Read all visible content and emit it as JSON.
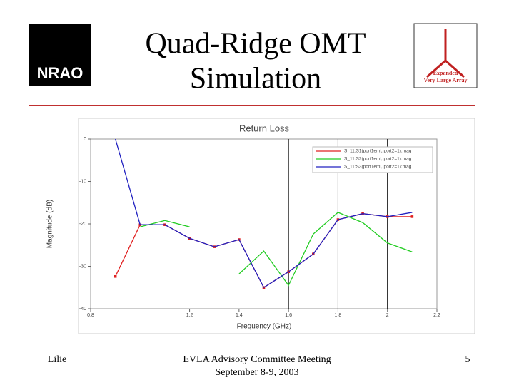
{
  "slide": {
    "title_lines": [
      "Quad-Ridge OMT",
      "Simulation"
    ],
    "logo_left": "NRAO",
    "logo_right": [
      "Expanded",
      "Very Large Array"
    ],
    "footer_left": "Lilie",
    "footer_center": [
      "EVLA Advisory Committee Meeting",
      "September 8-9, 2003"
    ],
    "footer_right": "5"
  },
  "chart_data": {
    "type": "line",
    "title": "Return Loss",
    "x_label": "Frequency (GHz)",
    "y_label": "Magnitude (dB)",
    "x": [
      0.9,
      1.0,
      1.1,
      1.2,
      1.3,
      1.4,
      1.5,
      1.6,
      1.7,
      1.8,
      1.9,
      2.0,
      2.1
    ],
    "series": [
      {
        "name": "S_11:S1(port1eml, port2=1):mag",
        "color": "#e02020",
        "marker": true,
        "values": [
          -32.4,
          -20.2,
          -20.2,
          -23.4,
          -25.4,
          -23.7,
          -35,
          -31.3,
          -27.1,
          -19,
          -17.6,
          -18.3,
          -18.3
        ]
      },
      {
        "name": "S_11:S2(port1eml, port2=1):mag",
        "color": "#22cc22",
        "marker": false,
        "values": [
          null,
          -20.7,
          -19.2,
          -20.7,
          null,
          -31.8,
          -26.4,
          -34.5,
          -22.4,
          -17.3,
          -19.7,
          -24.5,
          -26.6
        ]
      },
      {
        "name": "S_11:S3(port1eml, port2=1):mag",
        "color": "#2020c0",
        "marker": false,
        "values": [
          0,
          -20.2,
          -20.2,
          -23.4,
          -25.4,
          -23.7,
          -35,
          -31.3,
          -27.1,
          -19,
          -17.6,
          -18.3,
          -17.3
        ]
      }
    ],
    "xlim": [
      0.8,
      2.2
    ],
    "xticks": [
      {
        "value": 0.8,
        "label": "0.8"
      },
      {
        "value": 1.2,
        "label": "1.2"
      },
      {
        "value": 1.4,
        "label": "1.4"
      },
      {
        "value": 1.6,
        "label": "1.6"
      },
      {
        "value": 1.8,
        "label": "1.8"
      },
      2,
      2.2
    ],
    "ylim": [
      -40,
      0
    ],
    "yticks": [
      -40,
      -30,
      -20,
      -10,
      0
    ],
    "vlines": [
      1.6,
      1.8,
      2.0
    ],
    "legend": "upper right"
  }
}
